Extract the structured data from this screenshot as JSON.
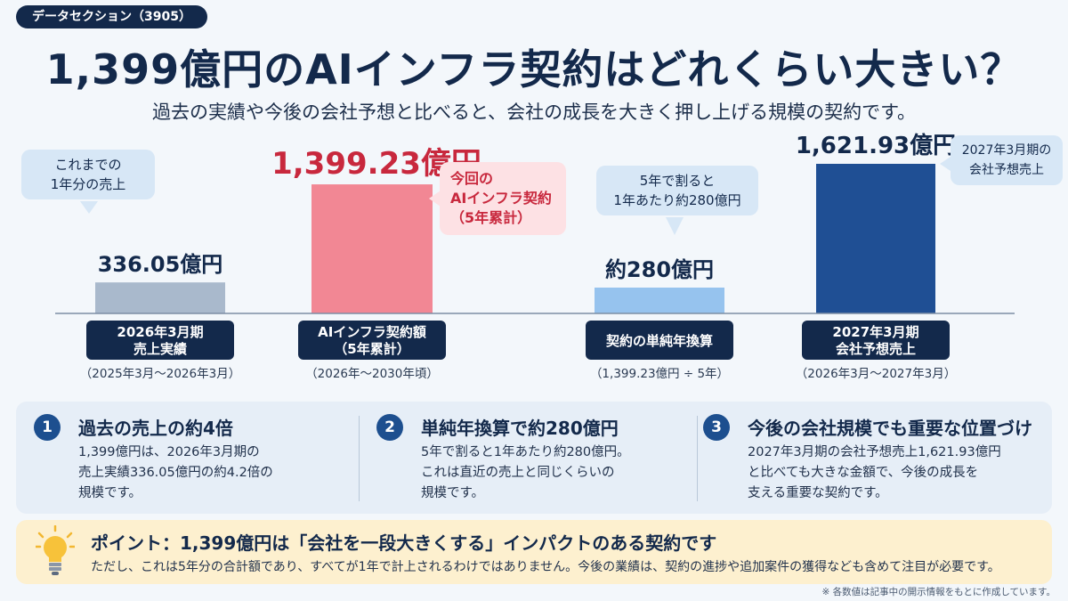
{
  "header": {
    "tag": "データセクション（3905）",
    "title": "1,399億円のAIインフラ契約はどれくらい大きい？",
    "subtitle": "過去の実績や今後の会社予想と比べると、会社の成長を大きく押し上げる規模の契約です。"
  },
  "colors": {
    "navy": "#13294b",
    "bar_actual": "#a9b9cc",
    "bar_contract": "#f28794",
    "bar_annual": "#96c3ee",
    "bar_forecast": "#1f4f94",
    "highlight_red": "#c8283d"
  },
  "chart_data": {
    "type": "bar",
    "categories": [
      "2026年3月期\n売上実績",
      "AIインフラ契約額\n（5年累計）",
      "契約の単純年換算",
      "2027年3月期\n会社予想売上"
    ],
    "category_subtitles": [
      "（2025年3月～2026年3月）",
      "（2026年～2030年頃）",
      "（1,399.23億円 ÷ 5年）",
      "（2026年3月～2027年3月）"
    ],
    "values": [
      336.05,
      1399.23,
      280,
      1621.93
    ],
    "value_labels": [
      "336.05億円",
      "1,399.23億円",
      "約280億円",
      "1,621.93億円"
    ],
    "unit": "億円",
    "ylim": [
      0,
      1700
    ],
    "grid": false,
    "annotations": [
      "これまでの\n1年分の売上",
      "今回の\nAIインフラ契約\n（5年累計）",
      "5年で割ると\n1年あたり約280億円",
      "2027年3月期の\n会社予想売上"
    ]
  },
  "cards": [
    {
      "num": "1",
      "title": "過去の売上の約4倍",
      "body": "1,399億円は、2026年3月期の\n売上実績336.05億円の約4.2倍の\n規模です。"
    },
    {
      "num": "2",
      "title": "単純年換算で約280億円",
      "body": "5年で割ると1年あたり約280億円。\nこれは直近の売上と同じくらいの\n規模です。"
    },
    {
      "num": "3",
      "title": "今後の会社規模でも重要な位置づけ",
      "body": "2027年3月期の会社予想売上1,621.93億円\nと比べても大きな金額で、今後の成長を\n支える重要な契約です。"
    }
  ],
  "point": {
    "icon": "lightbulb-icon",
    "title": "ポイント：1,399億円は「会社を一段大きくする」インパクトのある契約です",
    "body": "ただし、これは5年分の合計額であり、すべてが1年で計上されるわけではありません。今後の業績は、契約の進捗や追加案件の獲得なども含めて注目が必要です。"
  },
  "footnote": "※ 各数値は記事中の開示情報をもとに作成しています。"
}
